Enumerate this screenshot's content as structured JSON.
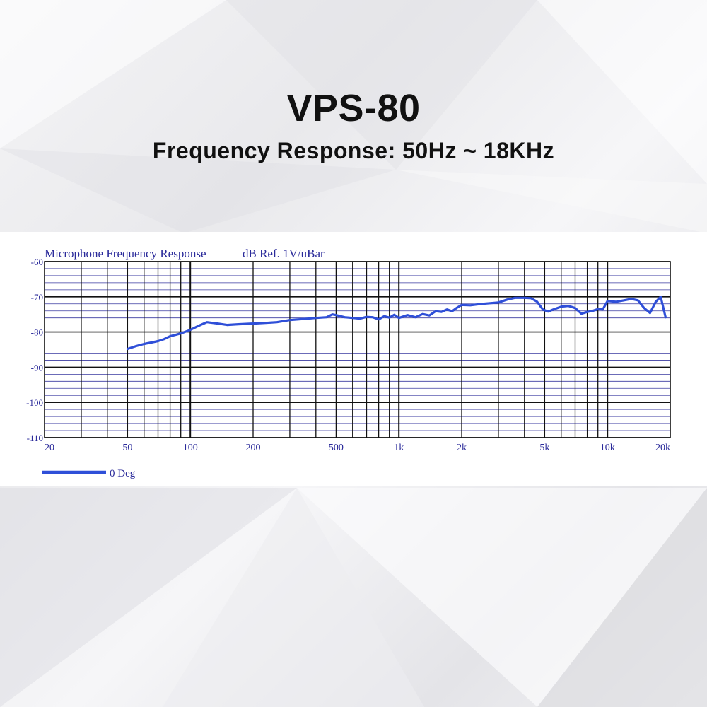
{
  "header": {
    "title": "VPS-80",
    "subtitle": "Frequency Response: 50Hz ~ 18KHz"
  },
  "chart_data": {
    "type": "line",
    "title": "Microphone Frequency Response",
    "ylabel": "dB Ref. 1V/uBar",
    "xlabel": "",
    "x_scale": "log",
    "xlim": [
      20,
      20000
    ],
    "ylim": [
      -110,
      -60
    ],
    "grid": true,
    "x_ticks": [
      {
        "value": 20,
        "label": "20"
      },
      {
        "value": 50,
        "label": "50"
      },
      {
        "value": 100,
        "label": "100"
      },
      {
        "value": 200,
        "label": "200"
      },
      {
        "value": 500,
        "label": "500"
      },
      {
        "value": 1000,
        "label": "1k"
      },
      {
        "value": 2000,
        "label": "2k"
      },
      {
        "value": 5000,
        "label": "5k"
      },
      {
        "value": 10000,
        "label": "10k"
      },
      {
        "value": 20000,
        "label": "20k"
      }
    ],
    "y_ticks": [
      {
        "value": -60,
        "label": "-60"
      },
      {
        "value": -70,
        "label": "-70"
      },
      {
        "value": -80,
        "label": "-80"
      },
      {
        "value": -90,
        "label": "-90"
      },
      {
        "value": -100,
        "label": "-100"
      },
      {
        "value": -110,
        "label": "-110"
      }
    ],
    "legend_position": "bottom-left",
    "series": [
      {
        "name": "0 Deg",
        "color": "#2f4fd8",
        "x": [
          50,
          55,
          60,
          65,
          70,
          75,
          80,
          85,
          90,
          100,
          110,
          120,
          135,
          150,
          170,
          200,
          230,
          260,
          300,
          350,
          400,
          450,
          480,
          500,
          550,
          600,
          650,
          700,
          750,
          800,
          850,
          900,
          950,
          1000,
          1100,
          1200,
          1300,
          1400,
          1500,
          1600,
          1700,
          1800,
          1900,
          2000,
          2200,
          2500,
          3000,
          3300,
          3600,
          4000,
          4300,
          4600,
          4900,
          5200,
          5500,
          6000,
          6500,
          7000,
          7500,
          8000,
          8500,
          9000,
          9500,
          10000,
          11000,
          12000,
          13000,
          14000,
          15000,
          16000,
          17000,
          18000,
          19000
        ],
        "y": [
          -84.8,
          -84.0,
          -83.4,
          -83.0,
          -82.6,
          -82.0,
          -81.2,
          -80.8,
          -80.4,
          -79.4,
          -78.2,
          -77.2,
          -77.6,
          -78.0,
          -77.8,
          -77.6,
          -77.4,
          -77.2,
          -76.6,
          -76.3,
          -76.0,
          -75.8,
          -75.0,
          -75.2,
          -75.8,
          -76.0,
          -76.2,
          -75.7,
          -75.8,
          -76.4,
          -75.5,
          -75.9,
          -75.1,
          -76.0,
          -75.2,
          -75.8,
          -74.9,
          -75.3,
          -74.1,
          -74.3,
          -73.6,
          -74.1,
          -73.1,
          -72.3,
          -72.4,
          -72.0,
          -71.6,
          -70.8,
          -70.3,
          -70.3,
          -70.4,
          -71.4,
          -73.6,
          -74.2,
          -73.6,
          -72.8,
          -72.6,
          -73.2,
          -74.8,
          -74.3,
          -74.0,
          -73.5,
          -73.6,
          -71.2,
          -71.4,
          -71.0,
          -70.6,
          -71.0,
          -73.2,
          -74.6,
          -71.5,
          -70.0,
          -75.8
        ]
      }
    ]
  }
}
